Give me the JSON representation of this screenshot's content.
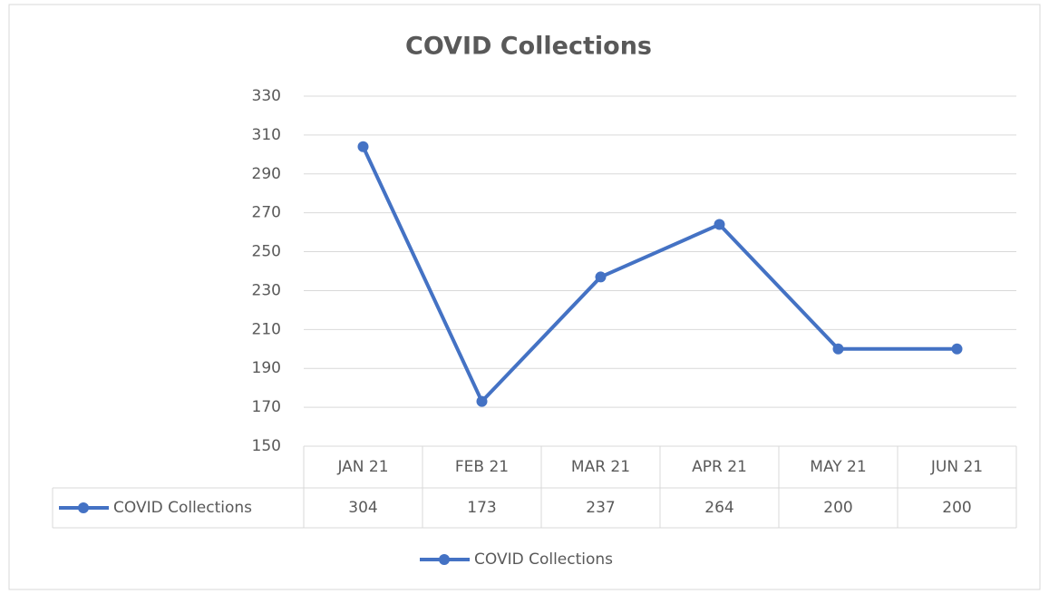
{
  "chart_data": {
    "type": "line",
    "title": "COVID Collections",
    "categories": [
      "JAN 21",
      "FEB 21",
      "MAR 21",
      "APR 21",
      "MAY 21",
      "JUN 21"
    ],
    "series": [
      {
        "name": "COVID Collections",
        "color": "#4472c4",
        "values": [
          304,
          173,
          237,
          264,
          200,
          200
        ]
      }
    ],
    "ylim": [
      150,
      330
    ],
    "yticks": [
      150,
      170,
      190,
      210,
      230,
      250,
      270,
      290,
      310,
      330
    ],
    "grid": true,
    "legend": "bottom"
  }
}
